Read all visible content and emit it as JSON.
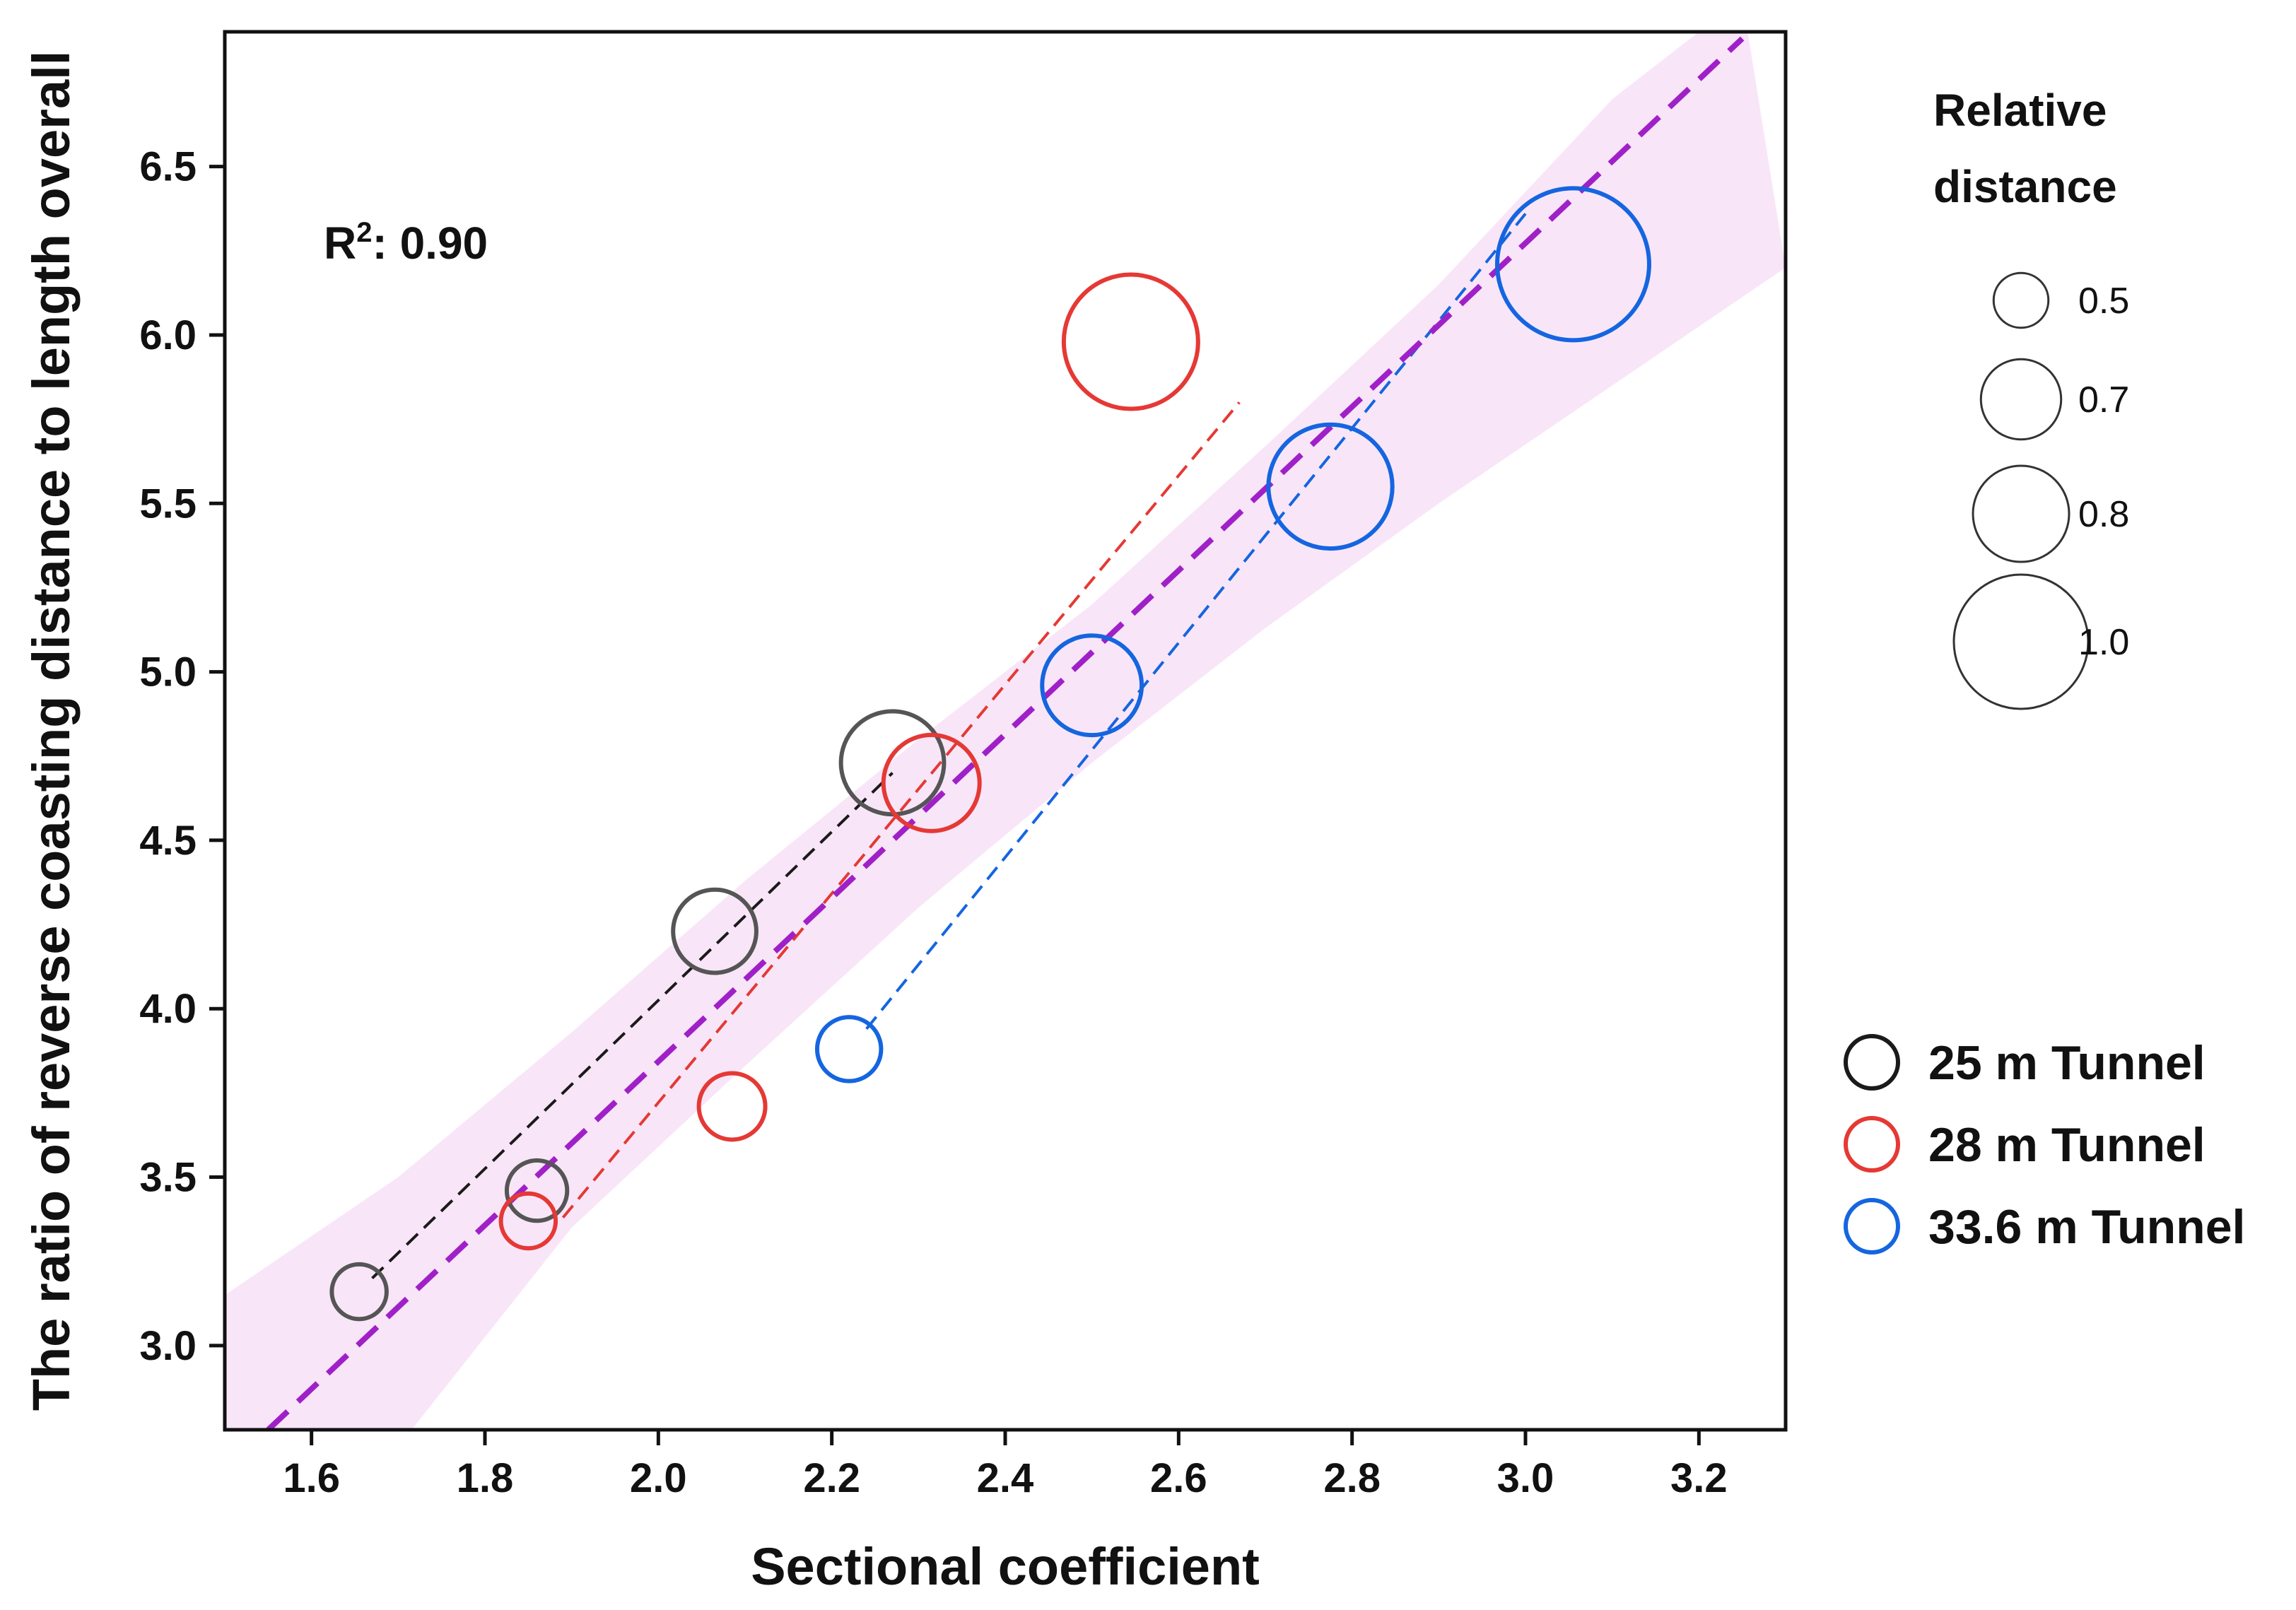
{
  "chart_data": {
    "type": "scatter",
    "title": "",
    "xlabel": "Sectional coefficient",
    "ylabel": "The ratio of reverse coasting distance to length overall",
    "xlim": [
      1.5,
      3.3
    ],
    "ylim": [
      2.75,
      6.9
    ],
    "xticks": [
      "1.6",
      "1.8",
      "2.0",
      "2.2",
      "2.4",
      "2.6",
      "2.8",
      "3.0",
      "3.2"
    ],
    "yticks": [
      "3.0",
      "3.5",
      "4.0",
      "4.5",
      "5.0",
      "5.5",
      "6.0",
      "6.5"
    ],
    "annotation": {
      "r2_label": "R",
      "r2_sup": "2",
      "r2_value": ": 0.90"
    },
    "size_legend": {
      "title_line1": "Relative",
      "title_line2": "distance",
      "entries": [
        {
          "value": 0.5,
          "label": "0.5"
        },
        {
          "value": 0.7,
          "label": "0.7"
        },
        {
          "value": 0.8,
          "label": "0.8"
        },
        {
          "value": 1.0,
          "label": "1.0"
        }
      ]
    },
    "series": [
      {
        "name": "25 m Tunnel",
        "color": "#1a1a1a",
        "point_color": "#555555",
        "points": [
          {
            "x": 1.655,
            "y": 3.16,
            "size": 0.5
          },
          {
            "x": 1.86,
            "y": 3.46,
            "size": 0.55
          },
          {
            "x": 2.065,
            "y": 4.23,
            "size": 0.72
          },
          {
            "x": 2.27,
            "y": 4.73,
            "size": 0.84
          }
        ],
        "fit": [
          [
            1.67,
            3.2
          ],
          [
            2.27,
            4.7
          ]
        ]
      },
      {
        "name": "28 m Tunnel",
        "color": "#e53935",
        "point_color": "#e53935",
        "points": [
          {
            "x": 1.85,
            "y": 3.37,
            "size": 0.5
          },
          {
            "x": 2.085,
            "y": 3.71,
            "size": 0.6
          },
          {
            "x": 2.315,
            "y": 4.67,
            "size": 0.8
          },
          {
            "x": 2.545,
            "y": 5.98,
            "size": 1.0
          }
        ],
        "fit": [
          [
            1.89,
            3.38
          ],
          [
            2.67,
            5.8
          ]
        ]
      },
      {
        "name": "33.6 m Tunnel",
        "color": "#1565e0",
        "point_color": "#1565e0",
        "points": [
          {
            "x": 2.22,
            "y": 3.88,
            "size": 0.58
          },
          {
            "x": 2.5,
            "y": 4.96,
            "size": 0.82
          },
          {
            "x": 2.775,
            "y": 5.55,
            "size": 0.95
          },
          {
            "x": 3.055,
            "y": 6.21,
            "size": 1.08
          }
        ],
        "fit": [
          [
            2.24,
            3.94
          ],
          [
            3.0,
            6.36
          ]
        ]
      }
    ],
    "overall_fit": {
      "color": "#a020c8",
      "band_color": "#f8e6f8",
      "line": [
        [
          1.55,
          2.75
        ],
        [
          3.25,
          6.88
        ]
      ],
      "band_upper": [
        [
          1.5,
          3.15
        ],
        [
          1.7,
          3.5
        ],
        [
          1.9,
          3.93
        ],
        [
          2.1,
          4.38
        ],
        [
          2.3,
          4.8
        ],
        [
          2.5,
          5.2
        ],
        [
          2.7,
          5.67
        ],
        [
          2.9,
          6.15
        ],
        [
          3.1,
          6.7
        ],
        [
          3.25,
          7.0
        ]
      ],
      "band_lower": [
        [
          1.5,
          2.3
        ],
        [
          1.7,
          2.7
        ],
        [
          1.9,
          3.35
        ],
        [
          2.1,
          3.83
        ],
        [
          2.3,
          4.3
        ],
        [
          2.5,
          4.73
        ],
        [
          2.7,
          5.13
        ],
        [
          2.9,
          5.5
        ],
        [
          3.1,
          5.85
        ],
        [
          3.3,
          6.2
        ]
      ]
    }
  }
}
